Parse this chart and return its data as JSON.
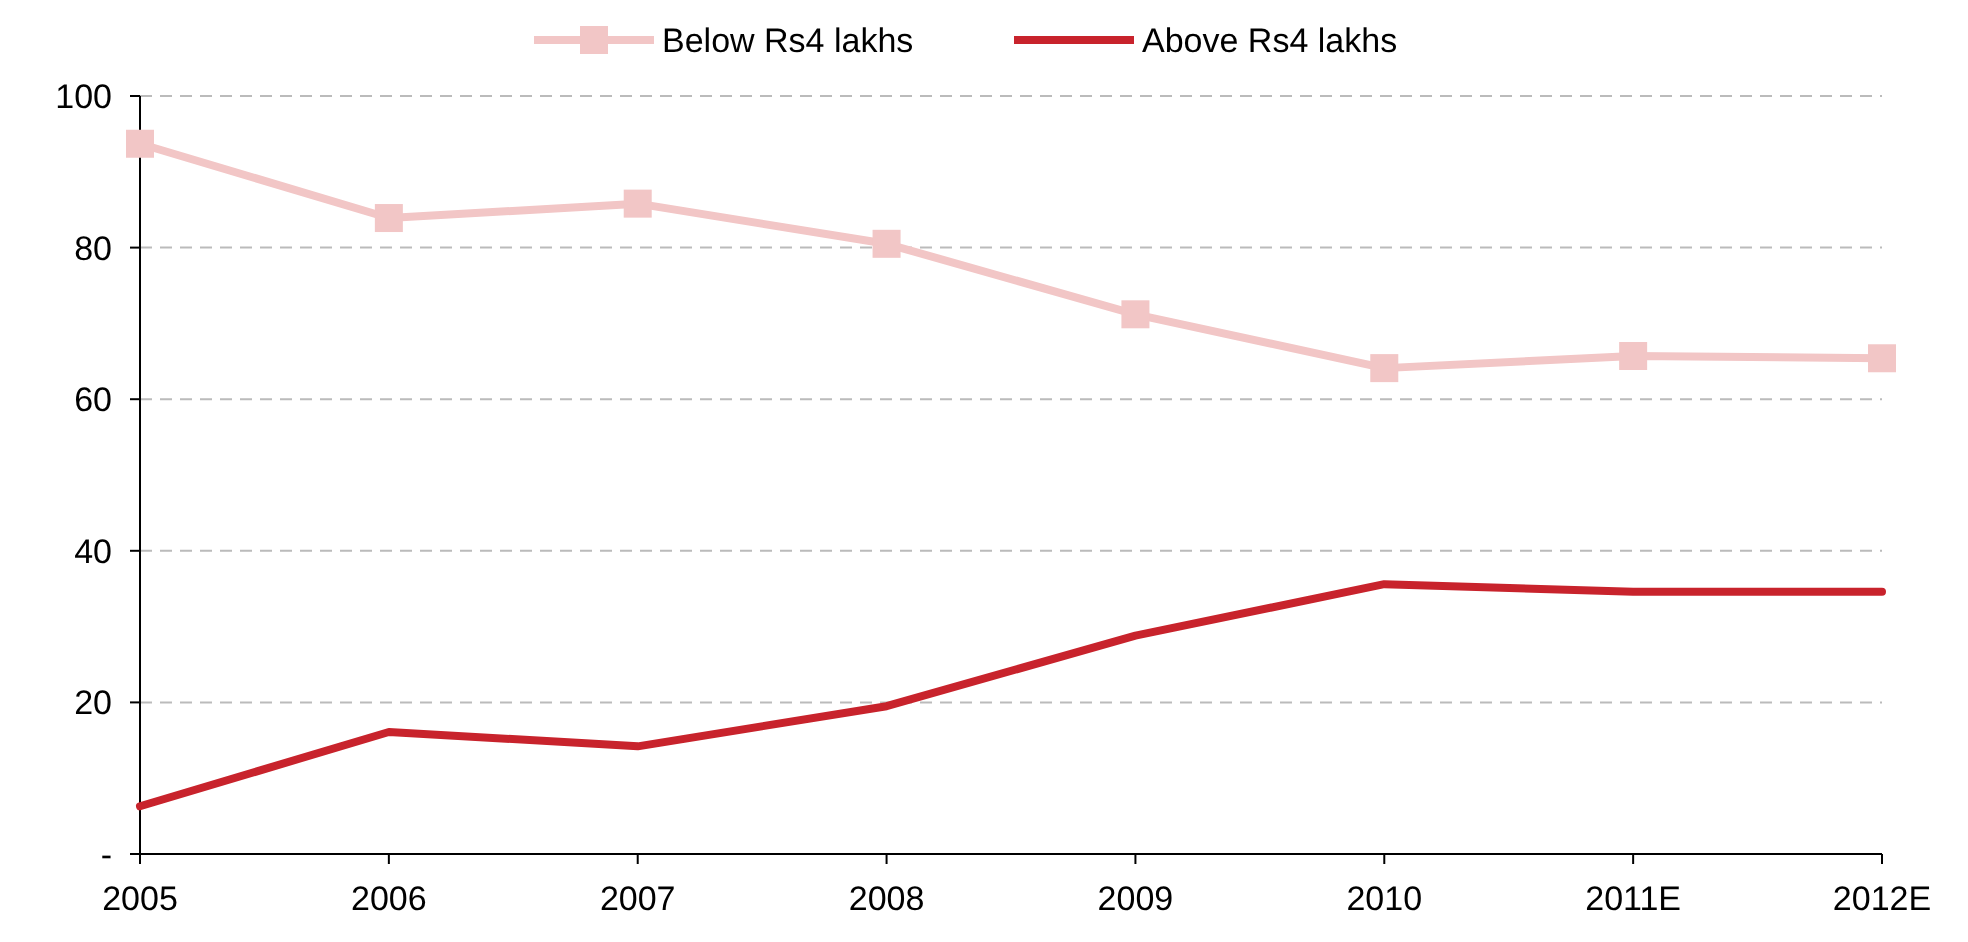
{
  "chart_data": {
    "type": "line",
    "categories": [
      "2005",
      "2006",
      "2007",
      "2008",
      "2009",
      "2010",
      "2011E",
      "2012E"
    ],
    "series": [
      {
        "name": "Below Rs4 lakhs",
        "color": "#f2c6c6",
        "marker": "square",
        "values": [
          93.7,
          83.9,
          85.8,
          80.5,
          71.2,
          64.1,
          65.7,
          65.4
        ]
      },
      {
        "name": "Above Rs4 lakhs",
        "color": "#c8232c",
        "marker": "none",
        "values": [
          6.3,
          16.1,
          14.2,
          19.5,
          28.8,
          35.6,
          34.6,
          34.6
        ]
      }
    ],
    "ylim": [
      0,
      100
    ],
    "yticks": [
      {
        "value": 0,
        "label": "-"
      },
      20,
      40,
      60,
      80,
      100
    ],
    "grid": "y",
    "legend": "top",
    "line_style": "solid"
  }
}
